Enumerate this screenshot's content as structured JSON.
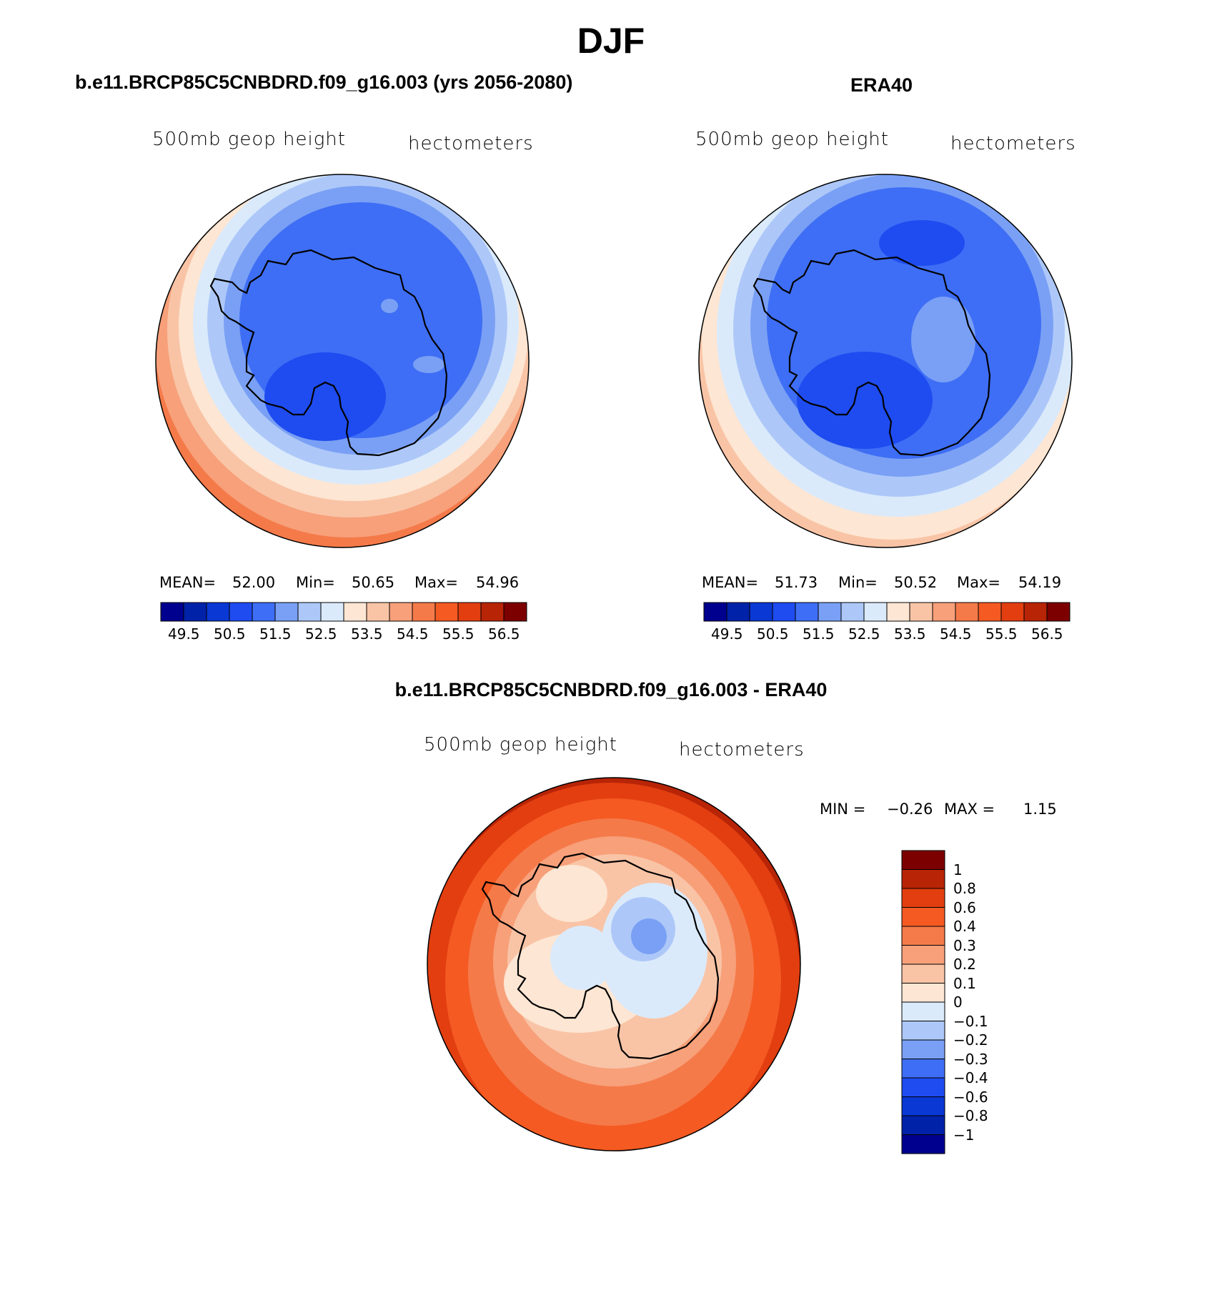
{
  "figure": {
    "title": "DJF"
  },
  "colors": {
    "coast": "#000000",
    "blue_scale": [
      "#00008f",
      "#0022a8",
      "#0a38d4",
      "#1e4cf0",
      "#3e6ef5",
      "#7aa0f5",
      "#adc8f8",
      "#daeafb"
    ],
    "red_scale": [
      "#fde6d3",
      "#f9c4a6",
      "#f7a07a",
      "#f57a4a",
      "#f45a22",
      "#e23e10",
      "#b82406",
      "#7d0000"
    ]
  },
  "panels": [
    {
      "id": "model",
      "title": "b.e11.BRCP85C5CNBDRD.f09_g16.003 (yrs 2056-2080)",
      "variable": "500mb geop height",
      "units": "hectometers",
      "stats": {
        "mean_label": "MEAN=",
        "mean": "52.00",
        "min_label": "Min=",
        "min": "50.65",
        "max_label": "Max=",
        "max": "54.96"
      },
      "colorbar": {
        "labels": [
          "49.5",
          "50.5",
          "51.5",
          "52.5",
          "53.5",
          "54.5",
          "55.5",
          "56.5"
        ]
      }
    },
    {
      "id": "obs",
      "title": "ERA40",
      "variable": "500mb geop height",
      "units": "hectometers",
      "stats": {
        "mean_label": "MEAN=",
        "mean": "51.73",
        "min_label": "Min=",
        "min": "50.52",
        "max_label": "Max=",
        "max": "54.19"
      },
      "colorbar": {
        "labels": [
          "49.5",
          "50.5",
          "51.5",
          "52.5",
          "53.5",
          "54.5",
          "55.5",
          "56.5"
        ]
      }
    },
    {
      "id": "diff",
      "title": "b.e11.BRCP85C5CNBDRD.f09_g16.003 - ERA40",
      "variable": "500mb geop height",
      "units": "hectometers",
      "stats": {
        "min_label": "MIN =",
        "min": "−0.26",
        "max_label": "MAX =",
        "max": "1.15"
      },
      "colorbar": {
        "labels": [
          "1",
          "0.8",
          "0.6",
          "0.4",
          "0.3",
          "0.2",
          "0.1",
          "0",
          "−0.1",
          "−0.2",
          "−0.3",
          "−0.4",
          "−0.6",
          "−0.8",
          "−1"
        ]
      }
    }
  ]
}
